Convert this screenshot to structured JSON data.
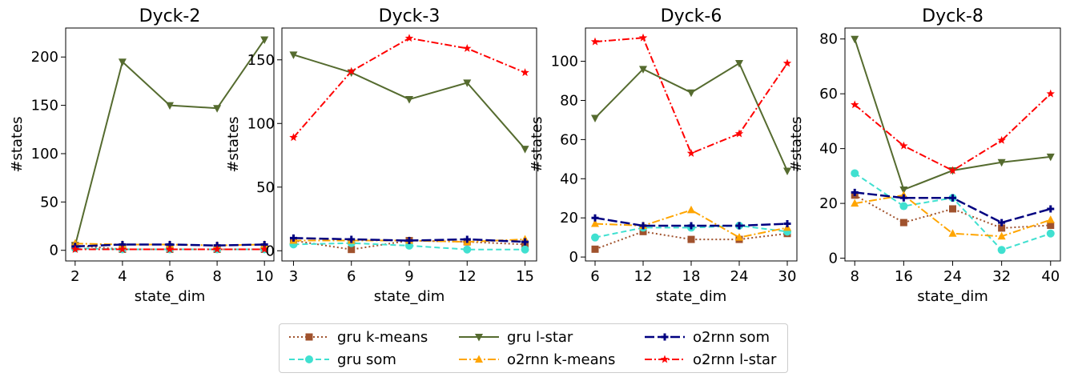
{
  "chart_data": [
    {
      "type": "line",
      "title": "Dyck-2",
      "xlabel": "state_dim",
      "ylabel": "#states",
      "x": [
        2,
        4,
        6,
        8,
        10
      ],
      "xlim": [
        1.6,
        10.4
      ],
      "ylim": [
        -11,
        230
      ],
      "yticks": [
        0,
        50,
        100,
        150,
        200
      ],
      "series": [
        {
          "key": "gru_kmeans",
          "values": [
            5,
            1,
            1,
            1,
            1
          ]
        },
        {
          "key": "gru_som",
          "values": [
            2,
            1,
            1,
            1,
            1
          ]
        },
        {
          "key": "gru_lstar",
          "values": [
            5,
            195,
            150,
            147,
            218
          ]
        },
        {
          "key": "o2rnn_kmeans",
          "values": [
            7,
            6,
            6,
            5,
            6
          ]
        },
        {
          "key": "o2rnn_som",
          "values": [
            4,
            6,
            6,
            5,
            6
          ]
        },
        {
          "key": "o2rnn_lstar",
          "values": [
            1,
            1,
            1,
            1,
            1
          ]
        }
      ]
    },
    {
      "type": "line",
      "title": "Dyck-3",
      "xlabel": "state_dim",
      "ylabel": "#states",
      "x": [
        3,
        6,
        9,
        12,
        15
      ],
      "xlim": [
        2.4,
        15.6
      ],
      "ylim": [
        -8,
        175
      ],
      "yticks": [
        0,
        50,
        100,
        150
      ],
      "series": [
        {
          "key": "gru_kmeans",
          "values": [
            8,
            1,
            8,
            7,
            5
          ]
        },
        {
          "key": "gru_som",
          "values": [
            5,
            6,
            4,
            1,
            1
          ]
        },
        {
          "key": "gru_lstar",
          "values": [
            154,
            140,
            119,
            132,
            80
          ]
        },
        {
          "key": "o2rnn_kmeans",
          "values": [
            8,
            8,
            8,
            7,
            9
          ]
        },
        {
          "key": "o2rnn_som",
          "values": [
            10,
            9,
            8,
            9,
            7
          ]
        },
        {
          "key": "o2rnn_lstar",
          "values": [
            89,
            141,
            167,
            159,
            140
          ]
        }
      ]
    },
    {
      "type": "line",
      "title": "Dyck-6",
      "xlabel": "state_dim",
      "ylabel": "#states",
      "x": [
        6,
        12,
        18,
        24,
        30
      ],
      "xlim": [
        4.8,
        31.2
      ],
      "ylim": [
        -2,
        117
      ],
      "yticks": [
        0,
        20,
        40,
        60,
        80,
        100
      ],
      "series": [
        {
          "key": "gru_kmeans",
          "values": [
            4,
            13,
            9,
            9,
            12
          ]
        },
        {
          "key": "gru_som",
          "values": [
            10,
            15,
            15,
            16,
            13
          ]
        },
        {
          "key": "gru_lstar",
          "values": [
            71,
            96,
            84,
            99,
            44
          ]
        },
        {
          "key": "o2rnn_kmeans",
          "values": [
            17,
            16,
            24,
            10,
            15
          ]
        },
        {
          "key": "o2rnn_som",
          "values": [
            20,
            16,
            16,
            16,
            17
          ]
        },
        {
          "key": "o2rnn_lstar",
          "values": [
            110,
            112,
            53,
            63,
            99
          ]
        }
      ]
    },
    {
      "type": "line",
      "title": "Dyck-8",
      "xlabel": "state_dim",
      "ylabel": "#states",
      "x": [
        8,
        16,
        24,
        32,
        40
      ],
      "xlim": [
        6.4,
        41.6
      ],
      "ylim": [
        -1,
        84
      ],
      "yticks": [
        0,
        20,
        40,
        60,
        80
      ],
      "series": [
        {
          "key": "gru_kmeans",
          "values": [
            23,
            13,
            18,
            11,
            12
          ]
        },
        {
          "key": "gru_som",
          "values": [
            31,
            19,
            22,
            3,
            9
          ]
        },
        {
          "key": "gru_lstar",
          "values": [
            80,
            25,
            32,
            35,
            37
          ]
        },
        {
          "key": "o2rnn_kmeans",
          "values": [
            20,
            23,
            9,
            8,
            14
          ]
        },
        {
          "key": "o2rnn_som",
          "values": [
            24,
            22,
            22,
            13,
            18
          ]
        },
        {
          "key": "o2rnn_lstar",
          "values": [
            56,
            41,
            32,
            43,
            60
          ]
        }
      ]
    }
  ],
  "series_styles": [
    {
      "key": "gru_kmeans",
      "name": "gru k-means",
      "color": "#a0522d",
      "dash": "2,3",
      "marker": "square",
      "width": 2
    },
    {
      "key": "gru_som",
      "name": "gru som",
      "color": "#40e0d0",
      "dash": "7,4",
      "marker": "circle",
      "width": 2
    },
    {
      "key": "gru_lstar",
      "name": "gru l-star",
      "color": "#556b2f",
      "dash": "",
      "marker": "triangle-down",
      "width": 2
    },
    {
      "key": "o2rnn_kmeans",
      "name": "o2rnn k-means",
      "color": "#ffa500",
      "dash": "10,3,2,3",
      "marker": "triangle-up",
      "width": 2
    },
    {
      "key": "o2rnn_som",
      "name": "o2rnn som",
      "color": "#000080",
      "dash": "12,4",
      "marker": "plus",
      "width": 2.5
    },
    {
      "key": "o2rnn_lstar",
      "name": "o2rnn l-star",
      "color": "#ff0000",
      "dash": "9,3,2,3",
      "marker": "star",
      "width": 2
    }
  ]
}
